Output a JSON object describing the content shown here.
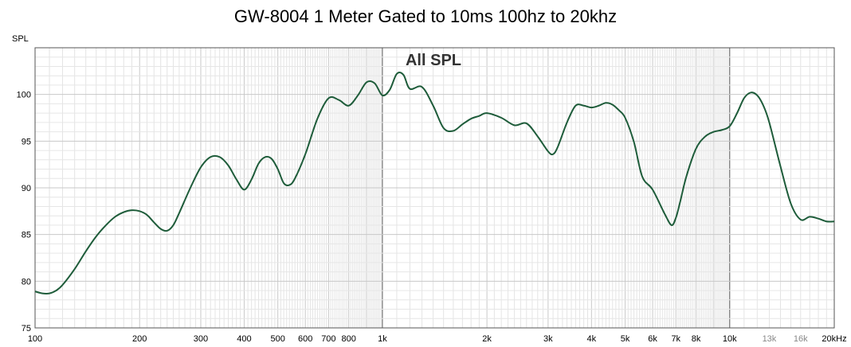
{
  "chart_data": {
    "type": "line",
    "title": "GW-8004 1 Meter Gated to 10ms 100hz to 20khz",
    "subtitle": "All SPL",
    "ylabel": "SPL",
    "x_scale": "log",
    "xlim": [
      100,
      20000
    ],
    "ylim": [
      75,
      105
    ],
    "grid": true,
    "x_tick_labels": [
      {
        "v": 100,
        "t": "100"
      },
      {
        "v": 200,
        "t": "200"
      },
      {
        "v": 300,
        "t": "300"
      },
      {
        "v": 400,
        "t": "400"
      },
      {
        "v": 500,
        "t": "500"
      },
      {
        "v": 600,
        "t": "600"
      },
      {
        "v": 700,
        "t": "700"
      },
      {
        "v": 800,
        "t": "800"
      },
      {
        "v": 1000,
        "t": "1k"
      },
      {
        "v": 2000,
        "t": "2k"
      },
      {
        "v": 3000,
        "t": "3k"
      },
      {
        "v": 4000,
        "t": "4k"
      },
      {
        "v": 5000,
        "t": "5k"
      },
      {
        "v": 6000,
        "t": "6k"
      },
      {
        "v": 7000,
        "t": "7k"
      },
      {
        "v": 8000,
        "t": "8k"
      },
      {
        "v": 10000,
        "t": "10k"
      },
      {
        "v": 13000,
        "t": "13k"
      },
      {
        "v": 16000,
        "t": "16k"
      },
      {
        "v": 20000,
        "t": "20kHz"
      }
    ],
    "y_ticks": [
      75,
      80,
      85,
      90,
      95,
      100
    ],
    "series": [
      {
        "color": "#1e5c3a",
        "x": [
          100,
          105,
          110,
          115,
          120,
          130,
          140,
          150,
          160,
          170,
          180,
          190,
          200,
          210,
          220,
          230,
          240,
          250,
          260,
          280,
          300,
          320,
          340,
          360,
          380,
          400,
          420,
          440,
          460,
          480,
          500,
          520,
          540,
          560,
          600,
          650,
          700,
          750,
          800,
          850,
          900,
          950,
          1000,
          1050,
          1100,
          1150,
          1200,
          1300,
          1400,
          1500,
          1600,
          1700,
          1800,
          1900,
          2000,
          2200,
          2400,
          2600,
          2800,
          3000,
          3100,
          3200,
          3400,
          3600,
          3800,
          4000,
          4200,
          4400,
          4600,
          4800,
          5000,
          5300,
          5600,
          6000,
          6500,
          6800,
          7000,
          7200,
          7500,
          8000,
          8500,
          9000,
          9500,
          10000,
          10500,
          11000,
          11500,
          12000,
          12500,
          13000,
          14000,
          15000,
          16000,
          17000,
          18000,
          19000,
          20000
        ],
        "y": [
          78.9,
          78.7,
          78.7,
          79.0,
          79.6,
          81.3,
          83.2,
          84.8,
          86.0,
          86.9,
          87.4,
          87.6,
          87.5,
          87.1,
          86.3,
          85.6,
          85.4,
          86.0,
          87.3,
          90.0,
          92.2,
          93.3,
          93.3,
          92.4,
          90.9,
          89.8,
          90.9,
          92.6,
          93.3,
          93.1,
          92.0,
          90.5,
          90.3,
          91.0,
          93.6,
          97.4,
          99.6,
          99.4,
          98.8,
          99.9,
          101.3,
          101.2,
          99.9,
          100.5,
          102.2,
          102.1,
          100.6,
          100.8,
          98.8,
          96.4,
          96.1,
          96.8,
          97.4,
          97.7,
          98.0,
          97.5,
          96.7,
          96.9,
          95.5,
          93.9,
          93.6,
          94.4,
          97.0,
          98.8,
          98.8,
          98.6,
          98.8,
          99.1,
          98.9,
          98.3,
          97.5,
          94.9,
          91.2,
          89.8,
          87.2,
          86.0,
          86.8,
          88.5,
          91.2,
          94.2,
          95.5,
          96.0,
          96.2,
          96.6,
          98.0,
          99.6,
          100.2,
          99.9,
          98.8,
          97.0,
          92.3,
          88.3,
          86.6,
          86.9,
          86.7,
          86.4,
          86.4
        ]
      }
    ]
  }
}
